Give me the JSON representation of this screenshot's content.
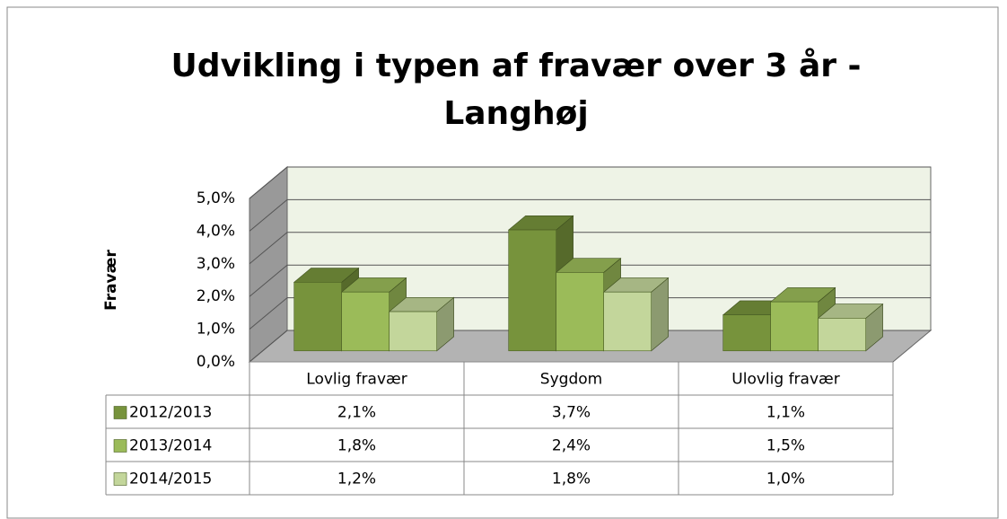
{
  "chart_data": {
    "type": "bar3d",
    "title": "Udvikling i typen af fravær over 3 år - Langhøj",
    "title_lines": [
      "Udvikling i typen af fravær over 3 år -",
      "Langhøj"
    ],
    "ylabel": "Fravær",
    "categories": [
      "Lovlig fravær",
      "Sygdom",
      "Ulovlig fravær"
    ],
    "series": [
      {
        "name": "2012/2013",
        "color": "#77933c",
        "values": [
          2.1,
          3.7,
          1.1
        ],
        "value_labels": [
          "2,1%",
          "3,7%",
          "1,1%"
        ]
      },
      {
        "name": "2013/2014",
        "color": "#9bbb59",
        "values": [
          1.8,
          2.4,
          1.5
        ],
        "value_labels": [
          "1,8%",
          "2,4%",
          "1,5%"
        ]
      },
      {
        "name": "2014/2015",
        "color": "#c3d69b",
        "values": [
          1.2,
          1.8,
          1.0
        ],
        "value_labels": [
          "1,2%",
          "1,8%",
          "1,0%"
        ]
      }
    ],
    "ylim": [
      0,
      5
    ],
    "yticks": [
      {
        "value": 0,
        "label": "0,0%"
      },
      {
        "value": 1,
        "label": "1,0%"
      },
      {
        "value": 2,
        "label": "2,0%"
      },
      {
        "value": 3,
        "label": "3,0%"
      },
      {
        "value": 4,
        "label": "4,0%"
      },
      {
        "value": 5,
        "label": "5,0%"
      }
    ],
    "grid": true,
    "data_table": true
  }
}
